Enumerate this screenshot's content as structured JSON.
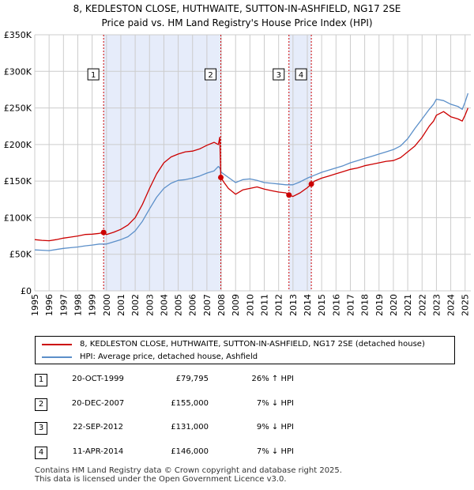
{
  "title_line1": "8, KEDLESTON CLOSE, HUTHWAITE, SUTTON-IN-ASHFIELD, NG17 2SE",
  "title_line2": "Price paid vs. HM Land Registry's House Price Index (HPI)",
  "colors": {
    "property": "#cc0000",
    "hpi": "#5b8fc9",
    "shade": "#e6ecfa",
    "grid": "#cccccc",
    "vline": "#cc0000"
  },
  "chart_data": {
    "type": "line",
    "title": "8, KEDLESTON CLOSE, HUTHWAITE, SUTTON-IN-ASHFIELD, NG17 2SE",
    "subtitle": "Price paid vs. HM Land Registry's House Price Index (HPI)",
    "xlabel": "",
    "ylabel": "",
    "xlim": [
      1995.0,
      2025.4
    ],
    "ylim": [
      0,
      350000
    ],
    "grid": true,
    "y_ticks": [
      {
        "value": 0,
        "label": "£0"
      },
      {
        "value": 50000,
        "label": "£50K"
      },
      {
        "value": 100000,
        "label": "£100K"
      },
      {
        "value": 150000,
        "label": "£150K"
      },
      {
        "value": 200000,
        "label": "£200K"
      },
      {
        "value": 250000,
        "label": "£250K"
      },
      {
        "value": 300000,
        "label": "£300K"
      },
      {
        "value": 350000,
        "label": "£350K"
      }
    ],
    "x_ticks": [
      "1995",
      "1996",
      "1997",
      "1998",
      "1999",
      "2000",
      "2001",
      "2002",
      "2003",
      "2004",
      "2005",
      "2006",
      "2007",
      "2008",
      "2009",
      "2010",
      "2011",
      "2012",
      "2013",
      "2014",
      "2015",
      "2016",
      "2017",
      "2018",
      "2019",
      "2020",
      "2021",
      "2022",
      "2023",
      "2024",
      "2025"
    ],
    "shaded_ranges": [
      [
        1999.8,
        2007.97
      ],
      [
        2012.72,
        2014.28
      ]
    ],
    "series": [
      {
        "name": "8, KEDLESTON CLOSE, HUTHWAITE, SUTTON-IN-ASHFIELD, NG17 2SE (detached house)",
        "color": "#cc0000",
        "x": [
          1995.0,
          1995.5,
          1996.0,
          1996.5,
          1997.0,
          1997.5,
          1998.0,
          1998.5,
          1999.0,
          1999.5,
          1999.8,
          2000.0,
          2000.5,
          2001.0,
          2001.5,
          2002.0,
          2002.5,
          2003.0,
          2003.5,
          2004.0,
          2004.5,
          2005.0,
          2005.5,
          2006.0,
          2006.5,
          2007.0,
          2007.5,
          2007.8,
          2007.9,
          2007.97,
          2008.2,
          2008.5,
          2009.0,
          2009.5,
          2010.0,
          2010.5,
          2011.0,
          2011.5,
          2012.0,
          2012.5,
          2012.72,
          2013.0,
          2013.5,
          2014.0,
          2014.28,
          2014.5,
          2015.0,
          2015.5,
          2016.0,
          2016.5,
          2017.0,
          2017.5,
          2018.0,
          2018.5,
          2019.0,
          2019.5,
          2020.0,
          2020.5,
          2021.0,
          2021.5,
          2022.0,
          2022.5,
          2022.8,
          2023.0,
          2023.5,
          2024.0,
          2024.5,
          2024.8,
          2025.0,
          2025.2
        ],
        "y": [
          70000,
          69000,
          68500,
          70000,
          72000,
          73500,
          75000,
          77000,
          77500,
          78500,
          79795,
          77000,
          80000,
          84000,
          90000,
          100000,
          118000,
          140000,
          160000,
          175000,
          183000,
          187000,
          190000,
          191000,
          194000,
          199000,
          203000,
          200000,
          210000,
          155000,
          148000,
          140000,
          132000,
          138000,
          140000,
          142000,
          139000,
          137000,
          135000,
          134000,
          131000,
          129000,
          134000,
          141000,
          146000,
          150000,
          154000,
          157000,
          160000,
          163000,
          166000,
          168000,
          171000,
          173000,
          175000,
          177000,
          178000,
          182000,
          190000,
          198000,
          210000,
          225000,
          232000,
          240000,
          245000,
          238000,
          235000,
          232000,
          240000,
          250000
        ]
      },
      {
        "name": "HPI: Average price, detached house, Ashfield",
        "color": "#5b8fc9",
        "x": [
          1995.0,
          1995.5,
          1996.0,
          1996.5,
          1997.0,
          1997.5,
          1998.0,
          1998.5,
          1999.0,
          1999.5,
          2000.0,
          2000.5,
          2001.0,
          2001.5,
          2002.0,
          2002.5,
          2003.0,
          2003.5,
          2004.0,
          2004.5,
          2005.0,
          2005.5,
          2006.0,
          2006.5,
          2007.0,
          2007.5,
          2007.8,
          2007.9,
          2008.0,
          2008.5,
          2009.0,
          2009.5,
          2010.0,
          2010.5,
          2011.0,
          2011.5,
          2012.0,
          2012.5,
          2013.0,
          2013.5,
          2014.0,
          2014.5,
          2015.0,
          2015.5,
          2016.0,
          2016.5,
          2017.0,
          2017.5,
          2018.0,
          2018.5,
          2019.0,
          2019.5,
          2020.0,
          2020.5,
          2021.0,
          2021.5,
          2022.0,
          2022.5,
          2022.8,
          2023.0,
          2023.5,
          2024.0,
          2024.5,
          2024.8,
          2025.0,
          2025.2
        ],
        "y": [
          56000,
          55500,
          55000,
          56500,
          58000,
          59000,
          60000,
          61500,
          62500,
          64000,
          64000,
          67000,
          70000,
          74000,
          82000,
          95000,
          112000,
          128000,
          140000,
          147000,
          151000,
          152000,
          154000,
          157000,
          161000,
          164000,
          170000,
          168000,
          162000,
          155000,
          148000,
          152000,
          153000,
          151000,
          148000,
          147000,
          146000,
          145000,
          145000,
          149000,
          154000,
          158000,
          162000,
          165000,
          168000,
          171000,
          175000,
          178000,
          181000,
          184000,
          187000,
          190000,
          193000,
          198000,
          208000,
          222000,
          235000,
          248000,
          255000,
          262000,
          260000,
          255000,
          252000,
          248000,
          258000,
          270000
        ]
      }
    ],
    "transactions": [
      {
        "num": "1",
        "x": 1999.8,
        "y": 79795
      },
      {
        "num": "2",
        "x": 2007.97,
        "y": 155000
      },
      {
        "num": "3",
        "x": 2012.72,
        "y": 131000
      },
      {
        "num": "4",
        "x": 2014.28,
        "y": 146000
      }
    ],
    "marker_box_value": 297000
  },
  "legend": {
    "property_label": "8, KEDLESTON CLOSE, HUTHWAITE, SUTTON-IN-ASHFIELD, NG17 2SE (detached house)",
    "hpi_label": "HPI: Average price, detached house, Ashfield"
  },
  "table": [
    {
      "num": "1",
      "date": "20-OCT-1999",
      "price": "£79,795",
      "hpi": "26% ↑ HPI"
    },
    {
      "num": "2",
      "date": "20-DEC-2007",
      "price": "£155,000",
      "hpi": "7% ↓ HPI"
    },
    {
      "num": "3",
      "date": "22-SEP-2012",
      "price": "£131,000",
      "hpi": "9% ↓ HPI"
    },
    {
      "num": "4",
      "date": "11-APR-2014",
      "price": "£146,000",
      "hpi": "7% ↓ HPI"
    }
  ],
  "footer": {
    "line1": "Contains HM Land Registry data © Crown copyright and database right 2025.",
    "line2": "This data is licensed under the Open Government Licence v3.0."
  }
}
